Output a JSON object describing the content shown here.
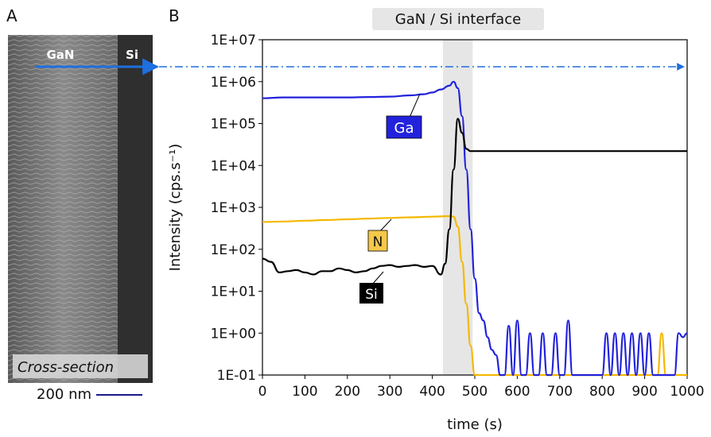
{
  "panels": {
    "a": "A",
    "b": "B"
  },
  "sem": {
    "gan_label": "GaN",
    "si_label": "Si",
    "caption": "Cross-section",
    "scalebar": "200 nm"
  },
  "interface_label": "GaN / Si  interface",
  "labels": {
    "ga": "Ga",
    "n": "N",
    "si": "Si"
  },
  "colors": {
    "ga": "#2222dd",
    "n": "#f5b800",
    "si": "#000000",
    "arrow": "#1e6fe0",
    "interface_band": "#e6e6e6"
  },
  "chart_data": {
    "type": "line",
    "xlabel": "time (s)",
    "ylabel": "Intensity (cps.s⁻¹)",
    "xlim": [
      0,
      1000
    ],
    "ylim": [
      0.1,
      10000000
    ],
    "yscale": "log",
    "x_ticks": [
      "0",
      "100",
      "200",
      "300",
      "400",
      "500",
      "600",
      "700",
      "800",
      "900",
      "1000"
    ],
    "y_ticks": [
      "1E-01",
      "1E+00",
      "1E+01",
      "1E+02",
      "1E+03",
      "1E+04",
      "1E+05",
      "1E+06",
      "1E+07"
    ],
    "interface_region": [
      425,
      495
    ],
    "series": [
      {
        "name": "Ga",
        "color": "#2222dd",
        "x": [
          0,
          50,
          100,
          150,
          200,
          250,
          300,
          350,
          380,
          400,
          420,
          440,
          450,
          460,
          470,
          480,
          490,
          500,
          510,
          520,
          530,
          540,
          550,
          560,
          570,
          580,
          590,
          600,
          610,
          620,
          630,
          640,
          650,
          660,
          670,
          680,
          690,
          700,
          710,
          720,
          730,
          740,
          750,
          760,
          770,
          780,
          790,
          800,
          810,
          820,
          830,
          840,
          850,
          860,
          870,
          880,
          890,
          900,
          910,
          920,
          930,
          940,
          950,
          960,
          970,
          980,
          990,
          1000
        ],
        "y": [
          400000,
          420000,
          420000,
          420000,
          420000,
          430000,
          440000,
          470000,
          500000,
          550000,
          650000,
          800000,
          1000000,
          700000,
          150000,
          8000,
          300,
          20,
          3,
          2,
          0.8,
          0.4,
          0.3,
          0.1,
          0.1,
          1.5,
          0.1,
          2,
          0.1,
          0.1,
          1,
          0.1,
          0.1,
          1,
          0.1,
          0.1,
          1,
          0.1,
          0.1,
          2,
          0.1,
          0.1,
          0.1,
          0.1,
          0.1,
          0.1,
          0.1,
          0.1,
          1,
          0.1,
          1,
          0.1,
          1,
          0.1,
          1,
          0.1,
          1,
          0.1,
          1,
          0.1,
          0.1,
          0.1,
          0.1,
          0.1,
          0.1,
          1,
          0.8,
          1
        ]
      },
      {
        "name": "N",
        "color": "#f5b800",
        "x": [
          0,
          50,
          100,
          150,
          200,
          250,
          300,
          350,
          400,
          440,
          450,
          460,
          470,
          480,
          490,
          500,
          600,
          700,
          800,
          900,
          930,
          940,
          950,
          1000
        ],
        "y": [
          450,
          460,
          480,
          500,
          520,
          540,
          560,
          580,
          600,
          620,
          600,
          350,
          50,
          5,
          0.5,
          0.1,
          0.1,
          0.1,
          0.1,
          0.1,
          0.1,
          1,
          0.1,
          0.1
        ]
      },
      {
        "name": "Si",
        "color": "#000000",
        "x": [
          0,
          20,
          40,
          60,
          80,
          100,
          120,
          140,
          160,
          180,
          200,
          220,
          240,
          260,
          280,
          300,
          320,
          340,
          360,
          380,
          400,
          420,
          430,
          440,
          450,
          460,
          470,
          480,
          490,
          500,
          600,
          700,
          800,
          900,
          1000
        ],
        "y": [
          60,
          50,
          28,
          30,
          32,
          28,
          25,
          30,
          30,
          35,
          32,
          28,
          30,
          35,
          40,
          42,
          38,
          40,
          42,
          38,
          40,
          25,
          45,
          300,
          8000,
          130000,
          60000,
          25000,
          22000,
          22000,
          22000,
          22000,
          22000,
          22000,
          22000
        ]
      }
    ]
  }
}
